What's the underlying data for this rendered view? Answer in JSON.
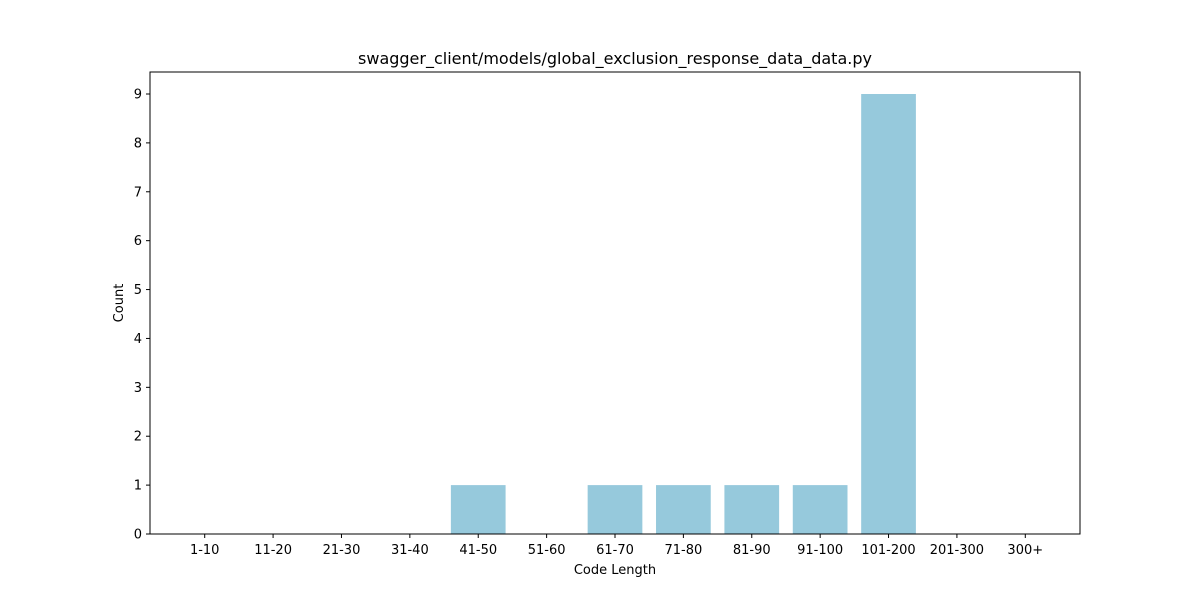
{
  "chart_data": {
    "type": "bar",
    "title": "swagger_client/models/global_exclusion_response_data_data.py",
    "xlabel": "Code Length",
    "ylabel": "Count",
    "categories": [
      "1-10",
      "11-20",
      "21-30",
      "31-40",
      "41-50",
      "51-60",
      "61-70",
      "71-80",
      "81-90",
      "91-100",
      "101-200",
      "201-300",
      "300+"
    ],
    "values": [
      0,
      0,
      0,
      0,
      1,
      0,
      1,
      1,
      1,
      1,
      9,
      0,
      0
    ],
    "ylim": [
      0,
      9.45
    ],
    "yticks": [
      0,
      1,
      2,
      3,
      4,
      5,
      6,
      7,
      8,
      9
    ],
    "bar_color": "#96c9dc",
    "grid": false,
    "legend": "none"
  }
}
